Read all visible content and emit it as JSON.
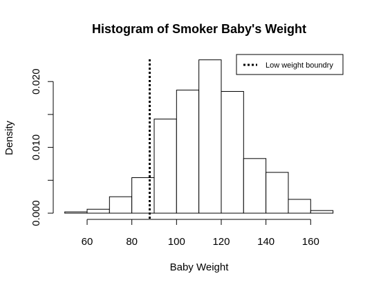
{
  "chart_data": {
    "type": "bar",
    "title": "Histogram of Smoker Baby's Weight",
    "xlabel": "Baby Weight",
    "ylabel": "Density",
    "bins": [
      {
        "from": 50,
        "to": 60,
        "density": 0.0002
      },
      {
        "from": 60,
        "to": 70,
        "density": 0.0006
      },
      {
        "from": 70,
        "to": 80,
        "density": 0.0025
      },
      {
        "from": 80,
        "to": 90,
        "density": 0.0054
      },
      {
        "from": 90,
        "to": 100,
        "density": 0.0143
      },
      {
        "from": 100,
        "to": 110,
        "density": 0.0187
      },
      {
        "from": 110,
        "to": 120,
        "density": 0.0233
      },
      {
        "from": 120,
        "to": 130,
        "density": 0.0185
      },
      {
        "from": 130,
        "to": 140,
        "density": 0.0083
      },
      {
        "from": 140,
        "to": 150,
        "density": 0.0062
      },
      {
        "from": 150,
        "to": 160,
        "density": 0.0021
      },
      {
        "from": 160,
        "to": 170,
        "density": 0.0004
      }
    ],
    "x_ticks": [
      60,
      80,
      100,
      120,
      140,
      160
    ],
    "y_ticks": [
      0.0,
      0.005,
      0.01,
      0.015,
      0.02
    ],
    "y_tick_labels": [
      "0.000",
      "",
      "0.010",
      "",
      "0.020"
    ],
    "xlim": [
      50,
      170
    ],
    "ylim": [
      0,
      0.0233
    ],
    "reference_line": {
      "x": 88,
      "style": "dotted",
      "label": "Low weight boundry"
    },
    "legend": {
      "position": "top-right",
      "entries": [
        "Low weight boundry"
      ]
    },
    "grid": false
  }
}
